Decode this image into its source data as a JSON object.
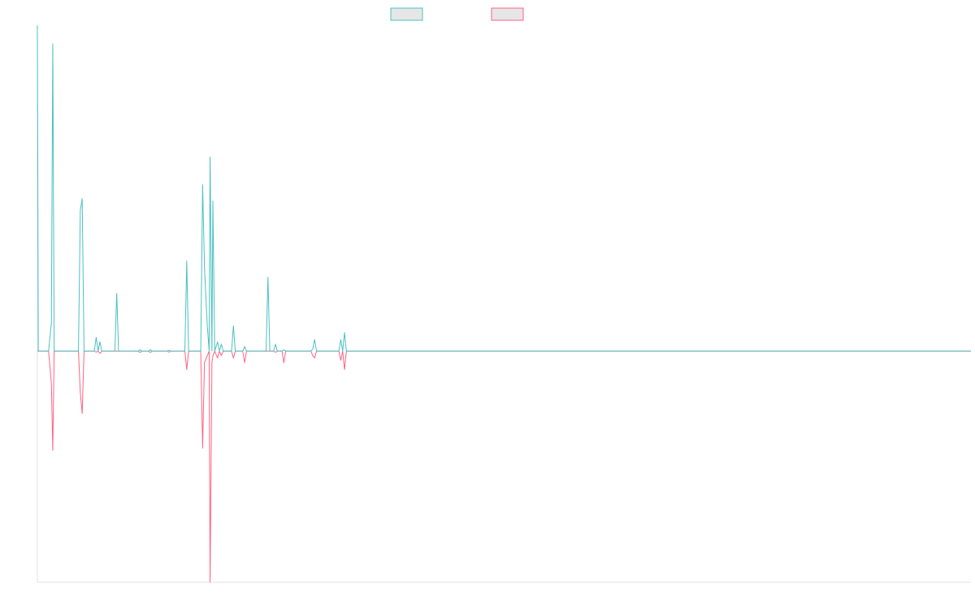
{
  "chart_data": {
    "type": "line",
    "title": "",
    "xlabel": "",
    "ylabel": "",
    "grid": false,
    "legend_position": "top-center",
    "xlim": [
      0,
      1
    ],
    "ylim": [
      -1,
      1.4
    ],
    "series": [
      {
        "color": "#4bc0c0",
        "points": [
          [
            0.0,
            1.41
          ],
          [
            0.001,
            0.0
          ],
          [
            0.012,
            0.0
          ],
          [
            0.015,
            0.12
          ],
          [
            0.0165,
            1.33
          ],
          [
            0.018,
            0.0
          ],
          [
            0.044,
            0.0
          ],
          [
            0.046,
            0.61
          ],
          [
            0.048,
            0.66
          ],
          [
            0.05,
            0.0
          ],
          [
            0.061,
            0.0
          ],
          [
            0.063,
            0.06
          ],
          [
            0.065,
            0.0
          ],
          [
            0.067,
            0.04
          ],
          [
            0.069,
            0.0
          ],
          [
            0.083,
            0.0
          ],
          [
            0.085,
            0.25
          ],
          [
            0.087,
            0.0
          ],
          [
            0.108,
            0.0
          ],
          [
            0.11,
            0.006
          ],
          [
            0.112,
            0.0
          ],
          [
            0.119,
            0.0
          ],
          [
            0.121,
            0.006
          ],
          [
            0.123,
            0.0
          ],
          [
            0.139,
            0.0
          ],
          [
            0.141,
            0.004
          ],
          [
            0.143,
            0.0
          ],
          [
            0.158,
            0.0
          ],
          [
            0.16,
            0.39
          ],
          [
            0.162,
            0.0
          ],
          [
            0.175,
            0.0
          ],
          [
            0.177,
            0.72
          ],
          [
            0.179,
            0.36
          ],
          [
            0.182,
            0.11
          ],
          [
            0.184,
            0.0
          ],
          [
            0.185,
            0.84
          ],
          [
            0.187,
            0.0
          ],
          [
            0.188,
            0.65
          ],
          [
            0.19,
            0.0
          ],
          [
            0.193,
            0.04
          ],
          [
            0.195,
            0.0
          ],
          [
            0.197,
            0.03
          ],
          [
            0.199,
            0.0
          ],
          [
            0.208,
            0.0
          ],
          [
            0.21,
            0.11
          ],
          [
            0.212,
            0.0
          ],
          [
            0.22,
            0.0
          ],
          [
            0.222,
            0.02
          ],
          [
            0.224,
            0.0
          ],
          [
            0.245,
            0.0
          ],
          [
            0.247,
            0.32
          ],
          [
            0.249,
            0.0
          ],
          [
            0.253,
            0.0
          ],
          [
            0.255,
            0.03
          ],
          [
            0.257,
            0.0
          ],
          [
            0.262,
            0.0
          ],
          [
            0.264,
            0.006
          ],
          [
            0.266,
            0.0
          ],
          [
            0.293,
            0.0
          ],
          [
            0.295,
            0.01
          ],
          [
            0.297,
            0.05
          ],
          [
            0.299,
            0.0
          ],
          [
            0.323,
            0.0
          ],
          [
            0.325,
            0.05
          ],
          [
            0.327,
            0.0
          ],
          [
            0.329,
            0.08
          ],
          [
            0.331,
            0.0
          ],
          [
            0.332,
            0.0
          ],
          [
            1.0,
            0.0
          ]
        ]
      },
      {
        "color": "#ff6384",
        "points": [
          [
            0.0,
            0.0
          ],
          [
            0.012,
            0.0
          ],
          [
            0.015,
            -0.14
          ],
          [
            0.0165,
            -0.43
          ],
          [
            0.018,
            0.0
          ],
          [
            0.044,
            0.0
          ],
          [
            0.046,
            -0.18
          ],
          [
            0.048,
            -0.27
          ],
          [
            0.05,
            0.0
          ],
          [
            0.061,
            0.0
          ],
          [
            0.063,
            -0.004
          ],
          [
            0.065,
            0.0
          ],
          [
            0.067,
            -0.01
          ],
          [
            0.069,
            0.0
          ],
          [
            0.108,
            0.0
          ],
          [
            0.11,
            -0.006
          ],
          [
            0.112,
            0.0
          ],
          [
            0.119,
            0.0
          ],
          [
            0.121,
            -0.006
          ],
          [
            0.123,
            0.0
          ],
          [
            0.139,
            0.0
          ],
          [
            0.141,
            -0.004
          ],
          [
            0.143,
            0.0
          ],
          [
            0.158,
            0.0
          ],
          [
            0.16,
            -0.08
          ],
          [
            0.162,
            0.0
          ],
          [
            0.175,
            0.0
          ],
          [
            0.177,
            -0.42
          ],
          [
            0.179,
            -0.05
          ],
          [
            0.182,
            -0.02
          ],
          [
            0.184,
            0.0
          ],
          [
            0.185,
            -1.0
          ],
          [
            0.187,
            -0.05
          ],
          [
            0.188,
            -0.02
          ],
          [
            0.19,
            0.0
          ],
          [
            0.193,
            -0.03
          ],
          [
            0.195,
            0.0
          ],
          [
            0.197,
            -0.02
          ],
          [
            0.199,
            0.0
          ],
          [
            0.208,
            0.0
          ],
          [
            0.21,
            -0.03
          ],
          [
            0.212,
            0.0
          ],
          [
            0.22,
            0.0
          ],
          [
            0.222,
            -0.05
          ],
          [
            0.224,
            0.0
          ],
          [
            0.253,
            0.0
          ],
          [
            0.255,
            -0.005
          ],
          [
            0.257,
            0.0
          ],
          [
            0.262,
            0.0
          ],
          [
            0.264,
            -0.05
          ],
          [
            0.266,
            0.0
          ],
          [
            0.293,
            0.0
          ],
          [
            0.295,
            -0.02
          ],
          [
            0.297,
            -0.03
          ],
          [
            0.299,
            0.0
          ],
          [
            0.323,
            0.0
          ],
          [
            0.325,
            -0.04
          ],
          [
            0.327,
            0.0
          ],
          [
            0.329,
            -0.08
          ],
          [
            0.331,
            0.0
          ],
          [
            0.332,
            0.0
          ],
          [
            1.0,
            0.0
          ]
        ]
      }
    ]
  }
}
